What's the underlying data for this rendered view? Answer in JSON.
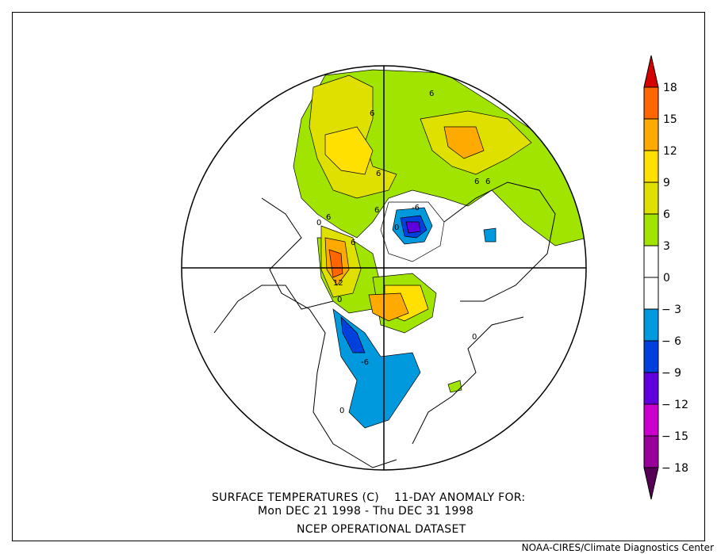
{
  "title": {
    "line1": "SURFACE TEMPERATURES (C)    11-DAY ANOMALY FOR:",
    "line2": "Mon DEC 21 1998 - Thu DEC 31 1998",
    "line3": "NCEP OPERATIONAL DATASET"
  },
  "credit": "NOAA-CIRES/Climate Diagnostics Center",
  "colorbar": {
    "labels": [
      "18",
      "15",
      "12",
      "9",
      "6",
      "3",
      "0",
      "-3",
      "-6",
      "-9",
      "-12",
      "-15",
      "-18"
    ],
    "colors": [
      "#d40000",
      "#ff6600",
      "#ffaa00",
      "#ffe000",
      "#e0e000",
      "#a0e400",
      "#ffffff",
      "#ffffff",
      "#0099dd",
      "#0040dd",
      "#6000dd",
      "#cc00cc",
      "#990099",
      "#550055"
    ]
  },
  "map": {
    "projection": "north-polar-stereographic",
    "contour_labels": [
      "6",
      "6",
      "6",
      "6",
      "6",
      "6",
      "0",
      "6",
      "12",
      "0",
      "-6",
      "6",
      "0",
      "-6",
      "0",
      "0"
    ]
  }
}
